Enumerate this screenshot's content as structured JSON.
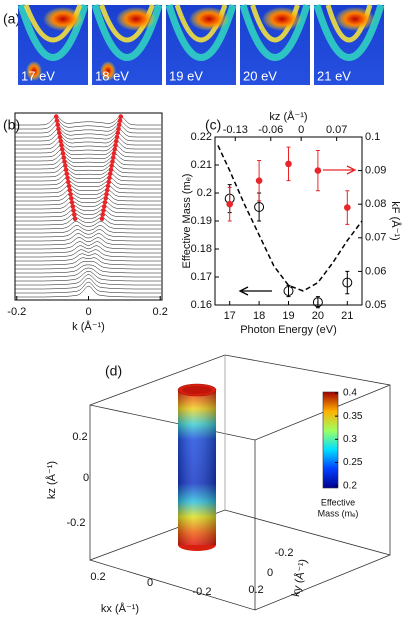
{
  "panel_labels": [
    "(a)",
    "(b)",
    "(c)",
    "(d)"
  ],
  "panel_a": {
    "labels": [
      "17 eV",
      "18 eV",
      "19 eV",
      "20 eV",
      "21 eV"
    ]
  },
  "chart_data": [
    {
      "type": "waterfall",
      "xlabel": "k (Å⁻¹)",
      "xlim": [
        -0.205,
        0.205
      ],
      "xticks": [
        -0.2,
        0,
        0.2
      ]
    },
    {
      "type": "scatter",
      "xlabel": "Photon Energy (eV)",
      "ylabel": "Effective Mass (mₑ)",
      "y2label": "kF (Å⁻¹)",
      "x2label": "kz (Å⁻¹)",
      "xlim": [
        16.5,
        21.5
      ],
      "xticks": [
        17,
        18,
        19,
        20,
        21
      ],
      "ylim": [
        0.16,
        0.22
      ],
      "yticks": [
        0.16,
        0.17,
        0.18,
        0.19,
        0.2,
        0.21,
        0.22
      ],
      "y2lim": [
        0.05,
        0.1
      ],
      "y2ticks": [
        0.05,
        0.06,
        0.07,
        0.08,
        0.09,
        0.1
      ],
      "x2lim": [
        -0.17,
        0.12
      ],
      "x2ticks": [
        -0.13,
        -0.06,
        0,
        0.07
      ],
      "series": [
        {
          "marker": "open",
          "color": "#000000",
          "x": [
            17,
            18,
            19,
            20,
            21
          ],
          "values": [
            0.198,
            0.195,
            0.165,
            0.161,
            0.168
          ],
          "errors": [
            0.005,
            0.005,
            0.002,
            0.002,
            0.004
          ]
        },
        {
          "marker": "filled",
          "axis": "y2",
          "color": "#e8262a",
          "x": [
            17,
            18,
            19,
            20,
            21
          ],
          "values": [
            0.08,
            0.087,
            0.092,
            0.09,
            0.079
          ],
          "errors": [
            0.005,
            0.006,
            0.005,
            0.006,
            0.005
          ]
        },
        {
          "line": "dashed",
          "color": "#000000",
          "x": [
            16.6,
            17,
            17.5,
            18,
            18.5,
            19,
            19.5,
            20,
            20.5,
            21,
            21.5
          ],
          "values": [
            0.217,
            0.208,
            0.196,
            0.185,
            0.174,
            0.167,
            0.165,
            0.168,
            0.175,
            0.183,
            0.19
          ]
        }
      ]
    }
  ],
  "panel_d": {
    "zlabel": "kz (Å⁻¹)",
    "zticks": [
      0.2,
      0,
      -0.2
    ],
    "xlabel": "kx (Å⁻¹)",
    "xticks": [
      0.2,
      0,
      -0.2
    ],
    "ylabel": "ky (Å⁻¹)",
    "yticks": [
      -0.2,
      0,
      0.2
    ],
    "colorbar": {
      "label": [
        "Effective",
        "Mass (mₑ)"
      ],
      "lim": [
        0.195,
        0.402
      ],
      "ticks": [
        0.4,
        0.35,
        0.3,
        0.25,
        0.2
      ]
    }
  }
}
